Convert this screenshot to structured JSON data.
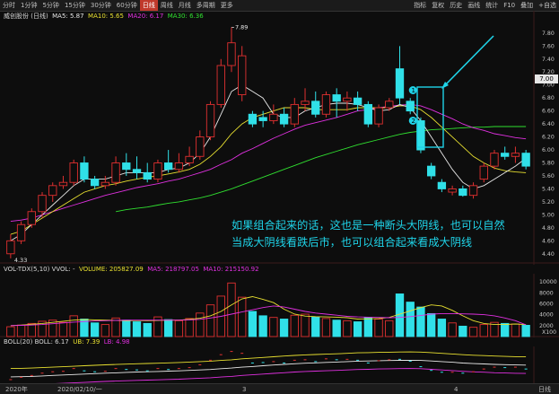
{
  "toolbar": {
    "tabs": [
      "分时",
      "1分钟",
      "5分钟",
      "15分钟",
      "30分钟",
      "60分钟",
      "日线",
      "周线",
      "月线",
      "多周期",
      "更多"
    ],
    "active_tab": "日线",
    "right_tools": [
      "指标",
      "复权",
      "历史",
      "画线",
      "统计",
      "F10",
      "叠加",
      "+自选"
    ]
  },
  "info": {
    "stock": "威创股份 (日线)",
    "ma5": "MA5: 5.87",
    "ma10": "MA10: 5.65",
    "ma20": "MA20: 6.17",
    "ma30": "MA30: 6.36"
  },
  "vol_info": {
    "name": "VOL-TDX(5,10)  VVOL: -",
    "volume": "VOLUME: 205827.09",
    "ma5": "MA5: 218797.05",
    "ma10": "MA10: 215150.92"
  },
  "boll_info": {
    "name": "BOLL(20)  BOLL: 6.17",
    "ub": "UB: 7.39",
    "lb": "LB: 4.98"
  },
  "annotation": {
    "line1": "如果组合起来的话，这也是一种断头大阴线，也可以自然",
    "line2": "当成大阴线看跌后市，也可以组合起来看成大阴线"
  },
  "markers": {
    "high": "7.89",
    "low": "4.33",
    "circle1": "1",
    "circle2": "2",
    "current_price": "7.00"
  },
  "price_axis": [
    "7.80",
    "7.60",
    "7.40",
    "7.20",
    "7.00",
    "6.80",
    "6.60",
    "6.40",
    "6.20",
    "6.00",
    "5.80",
    "5.60",
    "5.40",
    "5.20",
    "5.00",
    "4.80",
    "4.60",
    "4.40"
  ],
  "vol_axis": [
    "10000",
    "8000",
    "6000",
    "4000",
    "2000"
  ],
  "vol_unit": "X100",
  "footer": {
    "dates": [
      "2020年",
      "2020/02/10/一",
      "3",
      "4"
    ],
    "right_label": "日线"
  },
  "colors": {
    "up": "#e03030",
    "down": "#30e0e8",
    "ma5": "#e8e8e8",
    "ma10": "#e8e030",
    "ma20": "#e030e0",
    "ma30": "#30e030",
    "annotation": "#1fd3e8"
  },
  "chart_data": {
    "type": "candlestick",
    "candles": [
      [
        4.4,
        4.6,
        4.33,
        4.7
      ],
      [
        4.6,
        4.85,
        4.55,
        4.9
      ],
      [
        4.85,
        5.05,
        4.8,
        5.1
      ],
      [
        5.05,
        5.3,
        4.95,
        5.35
      ],
      [
        5.3,
        5.45,
        5.2,
        5.5
      ],
      [
        5.45,
        5.5,
        5.4,
        5.6
      ],
      [
        5.5,
        5.8,
        5.45,
        5.85
      ],
      [
        5.8,
        5.55,
        5.5,
        5.9
      ],
      [
        5.55,
        5.45,
        5.4,
        5.6
      ],
      [
        5.45,
        5.5,
        5.4,
        5.6
      ],
      [
        5.5,
        5.8,
        5.45,
        5.9
      ],
      [
        5.8,
        5.7,
        5.6,
        5.95
      ],
      [
        5.7,
        5.65,
        5.55,
        5.9
      ],
      [
        5.65,
        5.55,
        5.5,
        5.8
      ],
      [
        5.55,
        5.8,
        5.5,
        5.85
      ],
      [
        5.8,
        5.7,
        5.65,
        6.0
      ],
      [
        5.7,
        5.8,
        5.65,
        5.95
      ],
      [
        5.8,
        5.9,
        5.75,
        6.05
      ],
      [
        5.9,
        6.2,
        5.85,
        6.3
      ],
      [
        6.2,
        6.7,
        6.15,
        6.75
      ],
      [
        6.7,
        7.3,
        6.65,
        7.4
      ],
      [
        7.3,
        7.65,
        7.2,
        7.89
      ],
      [
        6.85,
        7.45,
        6.75,
        7.6
      ],
      [
        6.55,
        6.4,
        6.35,
        6.6
      ],
      [
        6.5,
        6.45,
        6.35,
        6.6
      ],
      [
        6.45,
        6.55,
        6.4,
        6.7
      ],
      [
        6.55,
        6.4,
        6.35,
        6.65
      ],
      [
        6.4,
        6.7,
        6.35,
        6.8
      ],
      [
        6.7,
        6.75,
        6.6,
        6.95
      ],
      [
        6.75,
        6.55,
        6.5,
        6.9
      ],
      [
        6.55,
        6.85,
        6.5,
        6.9
      ],
      [
        6.85,
        6.75,
        6.5,
        6.95
      ],
      [
        6.75,
        6.8,
        6.6,
        6.9
      ],
      [
        6.8,
        6.7,
        6.6,
        6.9
      ],
      [
        6.7,
        6.4,
        6.35,
        6.75
      ],
      [
        6.4,
        6.65,
        6.35,
        6.7
      ],
      [
        6.65,
        6.75,
        6.6,
        6.8
      ],
      [
        7.25,
        6.8,
        6.7,
        7.6
      ],
      [
        6.75,
        6.6,
        6.55,
        6.8
      ],
      [
        6.45,
        6.0,
        5.95,
        6.5
      ],
      [
        5.75,
        5.6,
        5.55,
        5.8
      ],
      [
        5.5,
        5.4,
        5.35,
        5.55
      ],
      [
        5.35,
        5.4,
        5.3,
        5.45
      ],
      [
        5.4,
        5.3,
        5.28,
        5.45
      ],
      [
        5.3,
        5.45,
        5.25,
        5.5
      ],
      [
        5.55,
        5.75,
        5.5,
        5.8
      ],
      [
        5.75,
        5.95,
        5.7,
        6.0
      ],
      [
        5.95,
        5.9,
        5.85,
        6.05
      ],
      [
        5.9,
        5.95,
        5.8,
        6.05
      ],
      [
        5.95,
        5.75,
        5.7,
        6.0
      ]
    ],
    "ma5": [
      4.6,
      4.7,
      4.85,
      5.0,
      5.15,
      5.3,
      5.45,
      5.55,
      5.55,
      5.55,
      5.6,
      5.65,
      5.65,
      5.65,
      5.65,
      5.7,
      5.72,
      5.8,
      5.95,
      6.2,
      6.55,
      6.9,
      7.0,
      6.9,
      6.8,
      6.55,
      6.5,
      6.5,
      6.6,
      6.65,
      6.7,
      6.72,
      6.72,
      6.7,
      6.65,
      6.6,
      6.62,
      6.7,
      6.65,
      6.45,
      6.2,
      5.95,
      5.7,
      5.5,
      5.4,
      5.45,
      5.55,
      5.65,
      5.75,
      5.87
    ],
    "ma10": [
      4.7,
      4.75,
      4.85,
      4.95,
      5.05,
      5.15,
      5.25,
      5.35,
      5.4,
      5.45,
      5.48,
      5.52,
      5.55,
      5.58,
      5.6,
      5.63,
      5.66,
      5.7,
      5.78,
      5.9,
      6.05,
      6.25,
      6.4,
      6.5,
      6.55,
      6.6,
      6.65,
      6.65,
      6.65,
      6.62,
      6.62,
      6.62,
      6.62,
      6.65,
      6.65,
      6.65,
      6.65,
      6.68,
      6.68,
      6.62,
      6.5,
      6.35,
      6.2,
      6.05,
      5.9,
      5.8,
      5.72,
      5.68,
      5.66,
      5.65
    ],
    "ma20": [
      4.9,
      4.92,
      4.95,
      5.0,
      5.05,
      5.1,
      5.15,
      5.2,
      5.25,
      5.3,
      5.34,
      5.38,
      5.42,
      5.45,
      5.48,
      5.52,
      5.55,
      5.6,
      5.65,
      5.7,
      5.78,
      5.85,
      5.95,
      6.02,
      6.1,
      6.18,
      6.25,
      6.32,
      6.38,
      6.42,
      6.46,
      6.5,
      6.55,
      6.6,
      6.62,
      6.65,
      6.67,
      6.69,
      6.7,
      6.68,
      6.62,
      6.55,
      6.48,
      6.4,
      6.34,
      6.3,
      6.25,
      6.22,
      6.19,
      6.17
    ],
    "ma30": [
      null,
      null,
      null,
      null,
      null,
      null,
      null,
      null,
      null,
      null,
      5.05,
      5.08,
      5.1,
      5.12,
      5.15,
      5.18,
      5.2,
      5.23,
      5.26,
      5.3,
      5.35,
      5.4,
      5.46,
      5.52,
      5.58,
      5.64,
      5.7,
      5.76,
      5.82,
      5.88,
      5.93,
      5.98,
      6.03,
      6.08,
      6.12,
      6.16,
      6.2,
      6.24,
      6.27,
      6.29,
      6.31,
      6.32,
      6.33,
      6.34,
      6.35,
      6.35,
      6.36,
      6.36,
      6.36,
      6.36
    ],
    "volume": [
      1800,
      2100,
      2400,
      2800,
      3000,
      2600,
      3800,
      3200,
      2500,
      2200,
      3400,
      3000,
      2700,
      2400,
      3600,
      3100,
      2900,
      3300,
      4300,
      5800,
      7400,
      9800,
      7200,
      4600,
      3800,
      3500,
      3200,
      3900,
      4100,
      3600,
      3300,
      3000,
      2900,
      2700,
      3500,
      3200,
      2900,
      7800,
      6300,
      5400,
      4200,
      3200,
      2500,
      1900,
      1700,
      2200,
      2600,
      2400,
      2300,
      2058
    ],
    "vol_ma5": [
      2000,
      2100,
      2250,
      2400,
      2600,
      2800,
      3000,
      3100,
      3050,
      3000,
      2950,
      2900,
      2950,
      2900,
      2950,
      3000,
      3000,
      3150,
      3350,
      3800,
      4600,
      5800,
      6900,
      7300,
      6800,
      6200,
      5000,
      4100,
      3750,
      3650,
      3600,
      3550,
      3450,
      3200,
      3250,
      3300,
      3500,
      4100,
      4700,
      5300,
      5800,
      5600,
      4800,
      3800,
      2900,
      2400,
      2200,
      2200,
      2300,
      2188
    ],
    "vol_ma10": [
      2000,
      2050,
      2100,
      2200,
      2350,
      2500,
      2650,
      2750,
      2850,
      2900,
      2950,
      3000,
      3000,
      3000,
      3000,
      3000,
      3000,
      3050,
      3150,
      3400,
      3700,
      4100,
      4500,
      4900,
      5300,
      5600,
      5400,
      5000,
      4600,
      4300,
      4100,
      3900,
      3700,
      3600,
      3550,
      3500,
      3450,
      3500,
      3650,
      3850,
      4100,
      4200,
      4200,
      4150,
      4100,
      4000,
      3800,
      3400,
      2900,
      2151
    ],
    "xlabel": "",
    "ylabel": "",
    "price_range": [
      4.3,
      7.95
    ],
    "vol_range": [
      0,
      11000
    ]
  }
}
